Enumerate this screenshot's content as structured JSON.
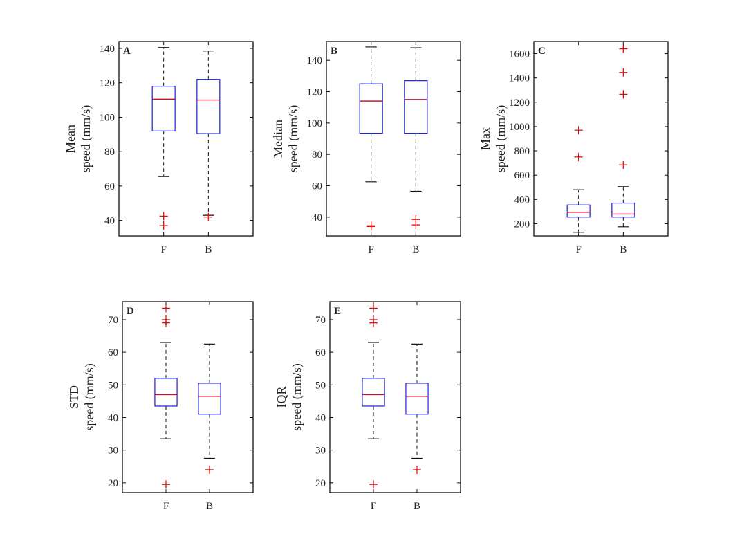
{
  "colors": {
    "box": "#1f1fd6",
    "median": "#c8102e",
    "outlier": "#e01010",
    "axis": "#111111",
    "whisker": "#111111"
  },
  "chart_data": [
    {
      "type": "boxplot",
      "letter": "A",
      "ylabel_lines": [
        "Mean",
        "speed (mm/s)"
      ],
      "categories": [
        "F",
        "B"
      ],
      "ylim": [
        31,
        144
      ],
      "yticks": [
        40,
        60,
        80,
        100,
        120,
        140
      ],
      "boxes": [
        {
          "name": "F",
          "whisker_low": 65.5,
          "q1": 92,
          "median": 110.5,
          "q3": 118,
          "whisker_high": 140.5,
          "outliers": [
            42.5,
            37
          ]
        },
        {
          "name": "B",
          "whisker_low": 43,
          "q1": 90.5,
          "median": 110,
          "q3": 122,
          "whisker_high": 138.5,
          "outliers": [
            42
          ]
        }
      ]
    },
    {
      "type": "boxplot",
      "letter": "B",
      "ylabel_lines": [
        "Median",
        "speed (mm/s)"
      ],
      "categories": [
        "F",
        "B"
      ],
      "ylim": [
        28,
        152
      ],
      "yticks": [
        40,
        60,
        80,
        100,
        120,
        140
      ],
      "boxes": [
        {
          "name": "F",
          "whisker_low": 62.5,
          "q1": 93.5,
          "median": 114,
          "q3": 125,
          "whisker_high": 148.5,
          "outliers": [
            34.5,
            34
          ]
        },
        {
          "name": "B",
          "whisker_low": 56.5,
          "q1": 93.5,
          "median": 115,
          "q3": 127,
          "whisker_high": 148,
          "outliers": [
            38.5,
            35
          ]
        }
      ]
    },
    {
      "type": "boxplot",
      "letter": "C",
      "ylabel_lines": [
        "Max",
        "speed (mm/s)"
      ],
      "categories": [
        "F",
        "B"
      ],
      "ylim": [
        100,
        1700
      ],
      "yticks": [
        200,
        400,
        600,
        800,
        1000,
        1200,
        1400,
        1600
      ],
      "boxes": [
        {
          "name": "F",
          "whisker_low": 130,
          "q1": 255,
          "median": 295,
          "q3": 355,
          "whisker_high": 480,
          "outliers": [
            970,
            750
          ]
        },
        {
          "name": "B",
          "whisker_low": 175,
          "q1": 255,
          "median": 280,
          "q3": 370,
          "whisker_high": 505,
          "outliers": [
            1640,
            1445,
            1265,
            685
          ]
        }
      ]
    },
    {
      "type": "boxplot",
      "letter": "D",
      "ylabel_lines": [
        "STD",
        "speed (mm/s)"
      ],
      "categories": [
        "F",
        "B"
      ],
      "ylim": [
        17,
        75.5
      ],
      "yticks": [
        20,
        30,
        40,
        50,
        60,
        70
      ],
      "boxes": [
        {
          "name": "F",
          "whisker_low": 33.5,
          "q1": 43.5,
          "median": 47,
          "q3": 52,
          "whisker_high": 63,
          "outliers": [
            73.5,
            70,
            69,
            19.5
          ]
        },
        {
          "name": "B",
          "whisker_low": 27.5,
          "q1": 41,
          "median": 46.5,
          "q3": 50.5,
          "whisker_high": 62.5,
          "outliers": [
            24
          ]
        }
      ]
    },
    {
      "type": "boxplot",
      "letter": "E",
      "ylabel_lines": [
        "IQR",
        "speed (mm/s)"
      ],
      "categories": [
        "F",
        "B"
      ],
      "ylim": [
        17,
        75.5
      ],
      "yticks": [
        20,
        30,
        40,
        50,
        60,
        70
      ],
      "boxes": [
        {
          "name": "F",
          "whisker_low": 33.5,
          "q1": 43.5,
          "median": 47,
          "q3": 52,
          "whisker_high": 63,
          "outliers": [
            73.5,
            70,
            69,
            19.5
          ]
        },
        {
          "name": "B",
          "whisker_low": 27.5,
          "q1": 41,
          "median": 46.5,
          "q3": 50.5,
          "whisker_high": 62.5,
          "outliers": [
            24
          ]
        }
      ]
    }
  ]
}
